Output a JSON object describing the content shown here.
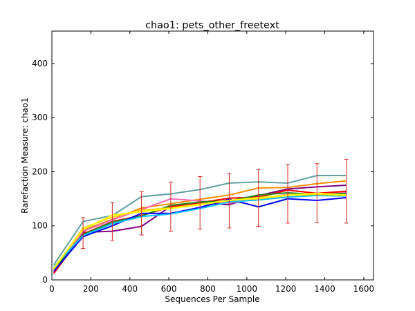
{
  "chart_data": {
    "type": "line",
    "title": "chao1: pets_other_freetext",
    "xlabel": "Sequences Per Sample",
    "ylabel": "Rarefaction Measure: chao1",
    "xlim": [
      0,
      1650
    ],
    "ylim": [
      0,
      460
    ],
    "xticks": [
      0,
      200,
      400,
      600,
      800,
      1000,
      1200,
      1400,
      1600
    ],
    "yticks": [
      0,
      100,
      200,
      300,
      400
    ],
    "xtick_labels": [
      "0",
      "200",
      "400",
      "600",
      "800",
      "1000",
      "1200",
      "1400",
      "1600"
    ],
    "ytick_labels": [
      "0",
      "100",
      "200",
      "300",
      "400"
    ],
    "grid": false,
    "legend": "none",
    "x": [
      10,
      160,
      310,
      460,
      610,
      760,
      910,
      1060,
      1210,
      1360,
      1510
    ],
    "series": [
      {
        "color": "#5F9EA0",
        "values": [
          28,
          108,
          119,
          154,
          159,
          167,
          179,
          181,
          179,
          193,
          193
        ]
      },
      {
        "color": "#FF8C00",
        "values": [
          18,
          92,
          112,
          133,
          141,
          149,
          157,
          170,
          171,
          178,
          183
        ]
      },
      {
        "color": "#800080",
        "values": [
          12,
          88,
          90,
          99,
          136,
          143,
          139,
          156,
          168,
          172,
          175
        ]
      },
      {
        "color": "#FF69B4",
        "values": [
          14,
          90,
          111,
          130,
          150,
          146,
          142,
          151,
          158,
          160,
          162
        ]
      },
      {
        "color": "#FF0000",
        "values": [
          12,
          85,
          108,
          119,
          135,
          143,
          151,
          153,
          166,
          160,
          164
        ]
      },
      {
        "color": "#228B22",
        "values": [
          20,
          84,
          107,
          118,
          138,
          144,
          146,
          157,
          161,
          158,
          160
        ]
      },
      {
        "color": "#0000FF",
        "values": [
          16,
          80,
          100,
          123,
          123,
          134,
          149,
          135,
          150,
          147,
          152
        ]
      },
      {
        "color": "#00BFFF",
        "values": [
          24,
          82,
          104,
          117,
          122,
          132,
          144,
          148,
          153,
          156,
          155
        ]
      },
      {
        "color": "#FFD700",
        "values": [
          20,
          96,
          116,
          129,
          133,
          140,
          147,
          150,
          156,
          158,
          156
        ]
      },
      {
        "color": "#FFFF00",
        "values": [
          22,
          93,
          120,
          126,
          132,
          139,
          147,
          152,
          157,
          160,
          157
        ]
      }
    ],
    "error_bars": {
      "color": "#d62728",
      "x": [
        160,
        310,
        460,
        610,
        760,
        910,
        1060,
        1210,
        1360,
        1510
      ],
      "low": [
        58,
        73,
        83,
        90,
        94,
        96,
        99,
        105,
        106,
        105
      ],
      "high": [
        115,
        143,
        163,
        181,
        191,
        197,
        204,
        213,
        215,
        223
      ]
    }
  }
}
